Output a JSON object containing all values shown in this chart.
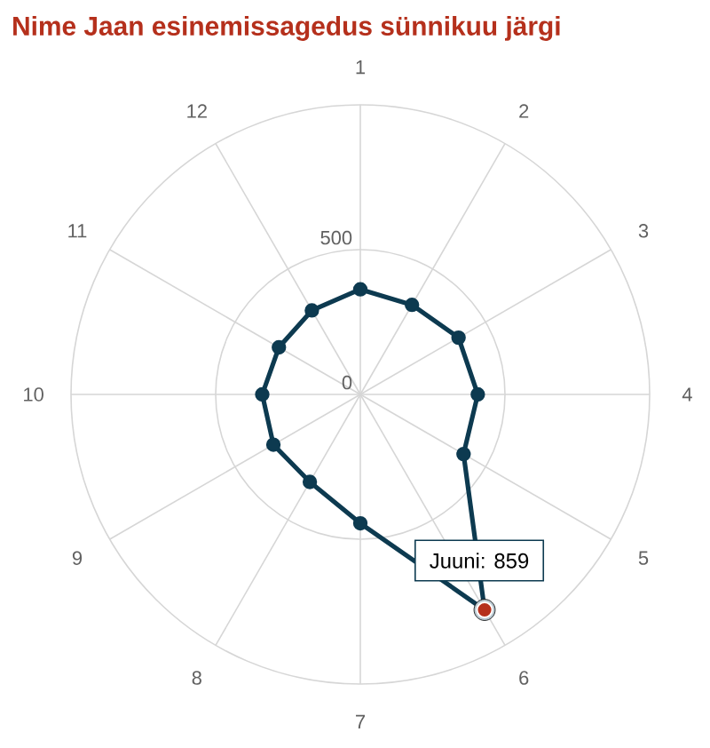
{
  "chart_data": {
    "type": "radar",
    "title": "Nime Jaan esinemissagedus sünnikuu järgi",
    "categories": [
      "1",
      "2",
      "3",
      "4",
      "5",
      "6",
      "7",
      "8",
      "9",
      "10",
      "11",
      "12"
    ],
    "series": [
      {
        "color": "#0d3a50",
        "colors": [
          "#0d3a50",
          "#0d3a50",
          "#0d3a50",
          "#0d3a50",
          "#0d3a50",
          "#b5301c",
          "#0d3a50",
          "#0d3a50",
          "#0d3a50",
          "#0d3a50",
          "#0d3a50",
          "#0d3a50"
        ],
        "values": [
          363,
          357,
          392,
          406,
          412,
          859,
          445,
          349,
          347,
          339,
          325,
          335
        ]
      }
    ],
    "ylim": [
      0,
      1000
    ],
    "yticks": [
      0,
      500
    ],
    "grid": true,
    "marker": "circle",
    "annotations": [
      {
        "text": "Juuni: 859",
        "x": "6"
      }
    ]
  }
}
